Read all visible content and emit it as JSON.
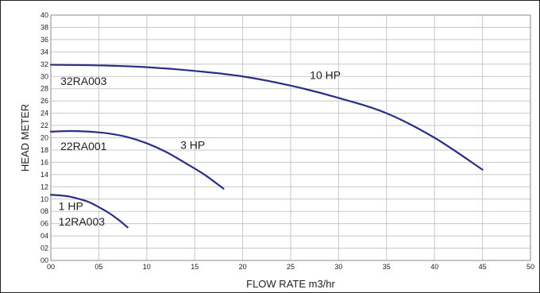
{
  "chart_data": {
    "type": "line",
    "title": "",
    "xlabel": "FLOW RATE m3/hr",
    "ylabel": "HEAD METER",
    "xlim": [
      0,
      50
    ],
    "ylim": [
      0,
      40
    ],
    "grid": true,
    "line_color": "#2b2f85",
    "x_tick_labels": [
      "00",
      "05",
      "10",
      "15",
      "20",
      "25",
      "30",
      "35",
      "40",
      "45",
      "50"
    ],
    "y_tick_labels": [
      "00",
      "02",
      "04",
      "06",
      "08",
      "10",
      "12",
      "14",
      "16",
      "18",
      "20",
      "22",
      "24",
      "26",
      "28",
      "30",
      "32",
      "34",
      "36",
      "38",
      "40"
    ],
    "series": [
      {
        "name": "1 HP",
        "model": "12RA003",
        "x": [
          0,
          1,
          2,
          3,
          4,
          5,
          6,
          7,
          8
        ],
        "y": [
          10.7,
          10.6,
          10.4,
          10.0,
          9.5,
          8.7,
          7.8,
          6.7,
          5.4
        ]
      },
      {
        "name": "3 HP",
        "model": "22RA001",
        "x": [
          0,
          2,
          4,
          6,
          8,
          10,
          12,
          14,
          16,
          18
        ],
        "y": [
          21.0,
          21.1,
          21.0,
          20.7,
          20.1,
          19.1,
          17.7,
          15.9,
          14.0,
          11.7
        ]
      },
      {
        "name": "10 HP",
        "model": "32RA003",
        "x": [
          0,
          5,
          10,
          15,
          20,
          25,
          30,
          35,
          40,
          45
        ],
        "y": [
          31.9,
          31.8,
          31.5,
          30.9,
          30.0,
          28.5,
          26.5,
          24.0,
          20.0,
          14.8
        ]
      }
    ],
    "annotations": [
      {
        "text": "32RA003",
        "x": 1,
        "y": 28.6
      },
      {
        "text": "10 HP",
        "x": 27,
        "y": 29.6
      },
      {
        "text": "22RA001",
        "x": 1,
        "y": 18.0
      },
      {
        "text": "3 HP",
        "x": 13.5,
        "y": 18.2
      },
      {
        "text": "1 HP",
        "x": 0.8,
        "y": 8.2
      },
      {
        "text": "12RA003",
        "x": 0.8,
        "y": 5.7
      }
    ]
  }
}
